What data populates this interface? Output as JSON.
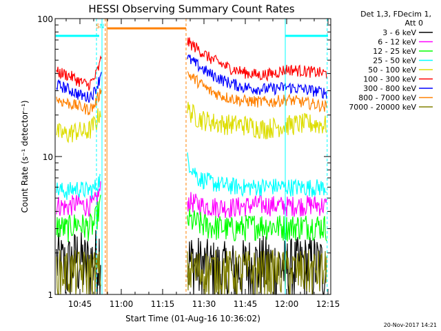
{
  "chart_data": {
    "type": "line",
    "title": "HESSI Observing Summary Count Rates",
    "xlabel": "Start Time (01-Aug-16 10:36:02)",
    "ylabel": "Count Rate (s⁻¹ detector⁻¹)",
    "y_scale": "log",
    "ylim": [
      1,
      100
    ],
    "xlim_minutes": [
      36,
      136
    ],
    "x_ticks": [
      {
        "minute": 45,
        "label": "10:45"
      },
      {
        "minute": 60,
        "label": "11:00"
      },
      {
        "minute": 75,
        "label": "11:15"
      },
      {
        "minute": 90,
        "label": "11:30"
      },
      {
        "minute": 105,
        "label": "11:45"
      },
      {
        "minute": 120,
        "label": "12:00"
      },
      {
        "minute": 135,
        "label": "12:15"
      }
    ],
    "y_ticks": [
      {
        "value": 1,
        "label": "1"
      },
      {
        "value": 10,
        "label": "10"
      },
      {
        "value": 100,
        "label": "100"
      }
    ],
    "legend_header": [
      "Det 1,3, FDecim 1,",
      "Att 0"
    ],
    "legend_placement": "right",
    "series": [
      {
        "name": "3 - 6 keV",
        "color": "#000000",
        "before": [
          [
            36.5,
            1.8
          ],
          [
            40,
            1.6
          ],
          [
            44,
            1.9
          ],
          [
            47,
            1.7
          ],
          [
            50,
            1.8
          ],
          [
            52.5,
            2.2
          ]
        ],
        "after": [
          [
            84,
            1.8
          ],
          [
            90,
            1.6
          ],
          [
            100,
            1.5
          ],
          [
            110,
            1.7
          ],
          [
            120,
            1.6
          ],
          [
            130,
            1.7
          ],
          [
            134.5,
            1.6
          ]
        ]
      },
      {
        "name": "6 - 12 keV",
        "color": "#ff00ff",
        "before": [
          [
            36.5,
            4.5
          ],
          [
            40,
            4.3
          ],
          [
            44,
            4.6
          ],
          [
            47,
            4.4
          ],
          [
            50,
            4.5
          ],
          [
            52.5,
            5.8
          ]
        ],
        "after": [
          [
            84,
            4.8
          ],
          [
            90,
            4.4
          ],
          [
            100,
            4.3
          ],
          [
            110,
            4.5
          ],
          [
            120,
            4.4
          ],
          [
            130,
            4.5
          ],
          [
            134.5,
            4.4
          ]
        ]
      },
      {
        "name": "12 - 25 keV",
        "color": "#00ff00",
        "before": [
          [
            36.5,
            3.2
          ],
          [
            40,
            3.0
          ],
          [
            44,
            3.3
          ],
          [
            47,
            3.1
          ],
          [
            50,
            3.2
          ],
          [
            52.5,
            4.5
          ]
        ],
        "after": [
          [
            84,
            3.5
          ],
          [
            90,
            3.2
          ],
          [
            100,
            3.0
          ],
          [
            110,
            3.2
          ],
          [
            120,
            3.1
          ],
          [
            130,
            3.2
          ],
          [
            134.5,
            3.1
          ]
        ]
      },
      {
        "name": "25 - 50 keV",
        "color": "#00ffff",
        "before": [
          [
            36.5,
            5.8
          ],
          [
            40,
            5.6
          ],
          [
            44,
            5.9
          ],
          [
            47,
            5.7
          ],
          [
            50,
            5.8
          ],
          [
            52.5,
            7.0
          ]
        ],
        "after": [
          [
            84,
            9.5
          ],
          [
            88,
            7.0
          ],
          [
            95,
            6.3
          ],
          [
            105,
            6.0
          ],
          [
            115,
            6.1
          ],
          [
            125,
            6.0
          ],
          [
            134.5,
            6.0
          ]
        ]
      },
      {
        "name": "50 - 100 keV",
        "color": "#dddd00",
        "before": [
          [
            36.5,
            15
          ],
          [
            40,
            14.5
          ],
          [
            44,
            15.5
          ],
          [
            47,
            15
          ],
          [
            49,
            16
          ],
          [
            51,
            18
          ],
          [
            52.5,
            22
          ]
        ],
        "after": [
          [
            84,
            22
          ],
          [
            88,
            19
          ],
          [
            95,
            17.5
          ],
          [
            105,
            17
          ],
          [
            112,
            16
          ],
          [
            120,
            17
          ],
          [
            127,
            17.5
          ],
          [
            134.5,
            17
          ]
        ]
      },
      {
        "name": "100 - 300 keV",
        "color": "#ff0000",
        "before": [
          [
            36.5,
            41
          ],
          [
            39,
            40
          ],
          [
            42,
            38
          ],
          [
            45,
            35
          ],
          [
            48,
            33
          ],
          [
            50,
            36
          ],
          [
            52,
            45
          ],
          [
            53,
            55
          ]
        ],
        "after": [
          [
            84,
            68
          ],
          [
            87,
            62
          ],
          [
            92,
            52
          ],
          [
            98,
            45
          ],
          [
            104,
            41
          ],
          [
            110,
            39
          ],
          [
            115,
            40
          ],
          [
            120,
            43
          ],
          [
            125,
            42
          ],
          [
            130,
            41
          ],
          [
            134.5,
            40
          ]
        ]
      },
      {
        "name": "300 - 800 keV",
        "color": "#0000ff",
        "before": [
          [
            36.5,
            33
          ],
          [
            39,
            32
          ],
          [
            42,
            30
          ],
          [
            45,
            28
          ],
          [
            48,
            27
          ],
          [
            50,
            29
          ],
          [
            52,
            36
          ],
          [
            53,
            44
          ]
        ],
        "after": [
          [
            84,
            52
          ],
          [
            87,
            47
          ],
          [
            92,
            40
          ],
          [
            98,
            35
          ],
          [
            104,
            32
          ],
          [
            110,
            31
          ],
          [
            115,
            31
          ],
          [
            120,
            32
          ],
          [
            125,
            31
          ],
          [
            130,
            30
          ],
          [
            134.5,
            29
          ]
        ]
      },
      {
        "name": "800 - 7000 keV",
        "color": "#ff8000",
        "before": [
          [
            36.5,
            26
          ],
          [
            39,
            25
          ],
          [
            42,
            24
          ],
          [
            45,
            23
          ],
          [
            48,
            22
          ],
          [
            50,
            23
          ],
          [
            52,
            28
          ],
          [
            53,
            33
          ]
        ],
        "after": [
          [
            84,
            40
          ],
          [
            87,
            36
          ],
          [
            92,
            30
          ],
          [
            98,
            27
          ],
          [
            104,
            25.5
          ],
          [
            110,
            25
          ],
          [
            115,
            25
          ],
          [
            120,
            26
          ],
          [
            125,
            25
          ],
          [
            130,
            24
          ],
          [
            134.5,
            23
          ]
        ]
      },
      {
        "name": "7000 - 20000 keV",
        "color": "#808000",
        "before": [
          [
            36.5,
            1.5
          ],
          [
            40,
            1.5
          ],
          [
            44,
            1.5
          ],
          [
            47,
            1.5
          ],
          [
            50,
            1.5
          ],
          [
            52.5,
            1.5
          ]
        ],
        "after": [
          [
            84,
            1.5
          ],
          [
            90,
            1.5
          ],
          [
            100,
            1.5
          ],
          [
            110,
            1.5
          ],
          [
            120,
            1.5
          ],
          [
            130,
            1.5
          ],
          [
            134.5,
            1.5
          ]
        ]
      }
    ],
    "attenuator_band": {
      "color": "#ff8000",
      "from": 55,
      "to": 83.5,
      "level": 85
    },
    "annotations": [
      {
        "text": "S",
        "minute": 51.5,
        "color": "#ff8000"
      },
      {
        "text": "N",
        "minute": 53,
        "color": "#00ffff"
      }
    ],
    "saa_bars": [
      {
        "color": "#00ffff",
        "from": 36.2,
        "to": 52,
        "level": 75
      },
      {
        "color": "#00ffff",
        "from": 119.5,
        "to": 135,
        "level": 75
      }
    ],
    "vlines": [
      {
        "minute": 51,
        "color": "#00ffff",
        "style": "dashed"
      },
      {
        "minute": 53,
        "color": "#00ffff",
        "style": "solid"
      },
      {
        "minute": 54.2,
        "color": "#ff8000",
        "style": "dashed"
      },
      {
        "minute": 54.8,
        "color": "#ff8000",
        "style": "solid"
      },
      {
        "minute": 83.5,
        "color": "#ff8000",
        "style": "dashed"
      },
      {
        "minute": 119.5,
        "color": "#00ffff",
        "style": "solid"
      },
      {
        "minute": 134.7,
        "color": "#00ffff",
        "style": "dashed"
      }
    ],
    "timestamp": "20-Nov-2017 14:21"
  }
}
